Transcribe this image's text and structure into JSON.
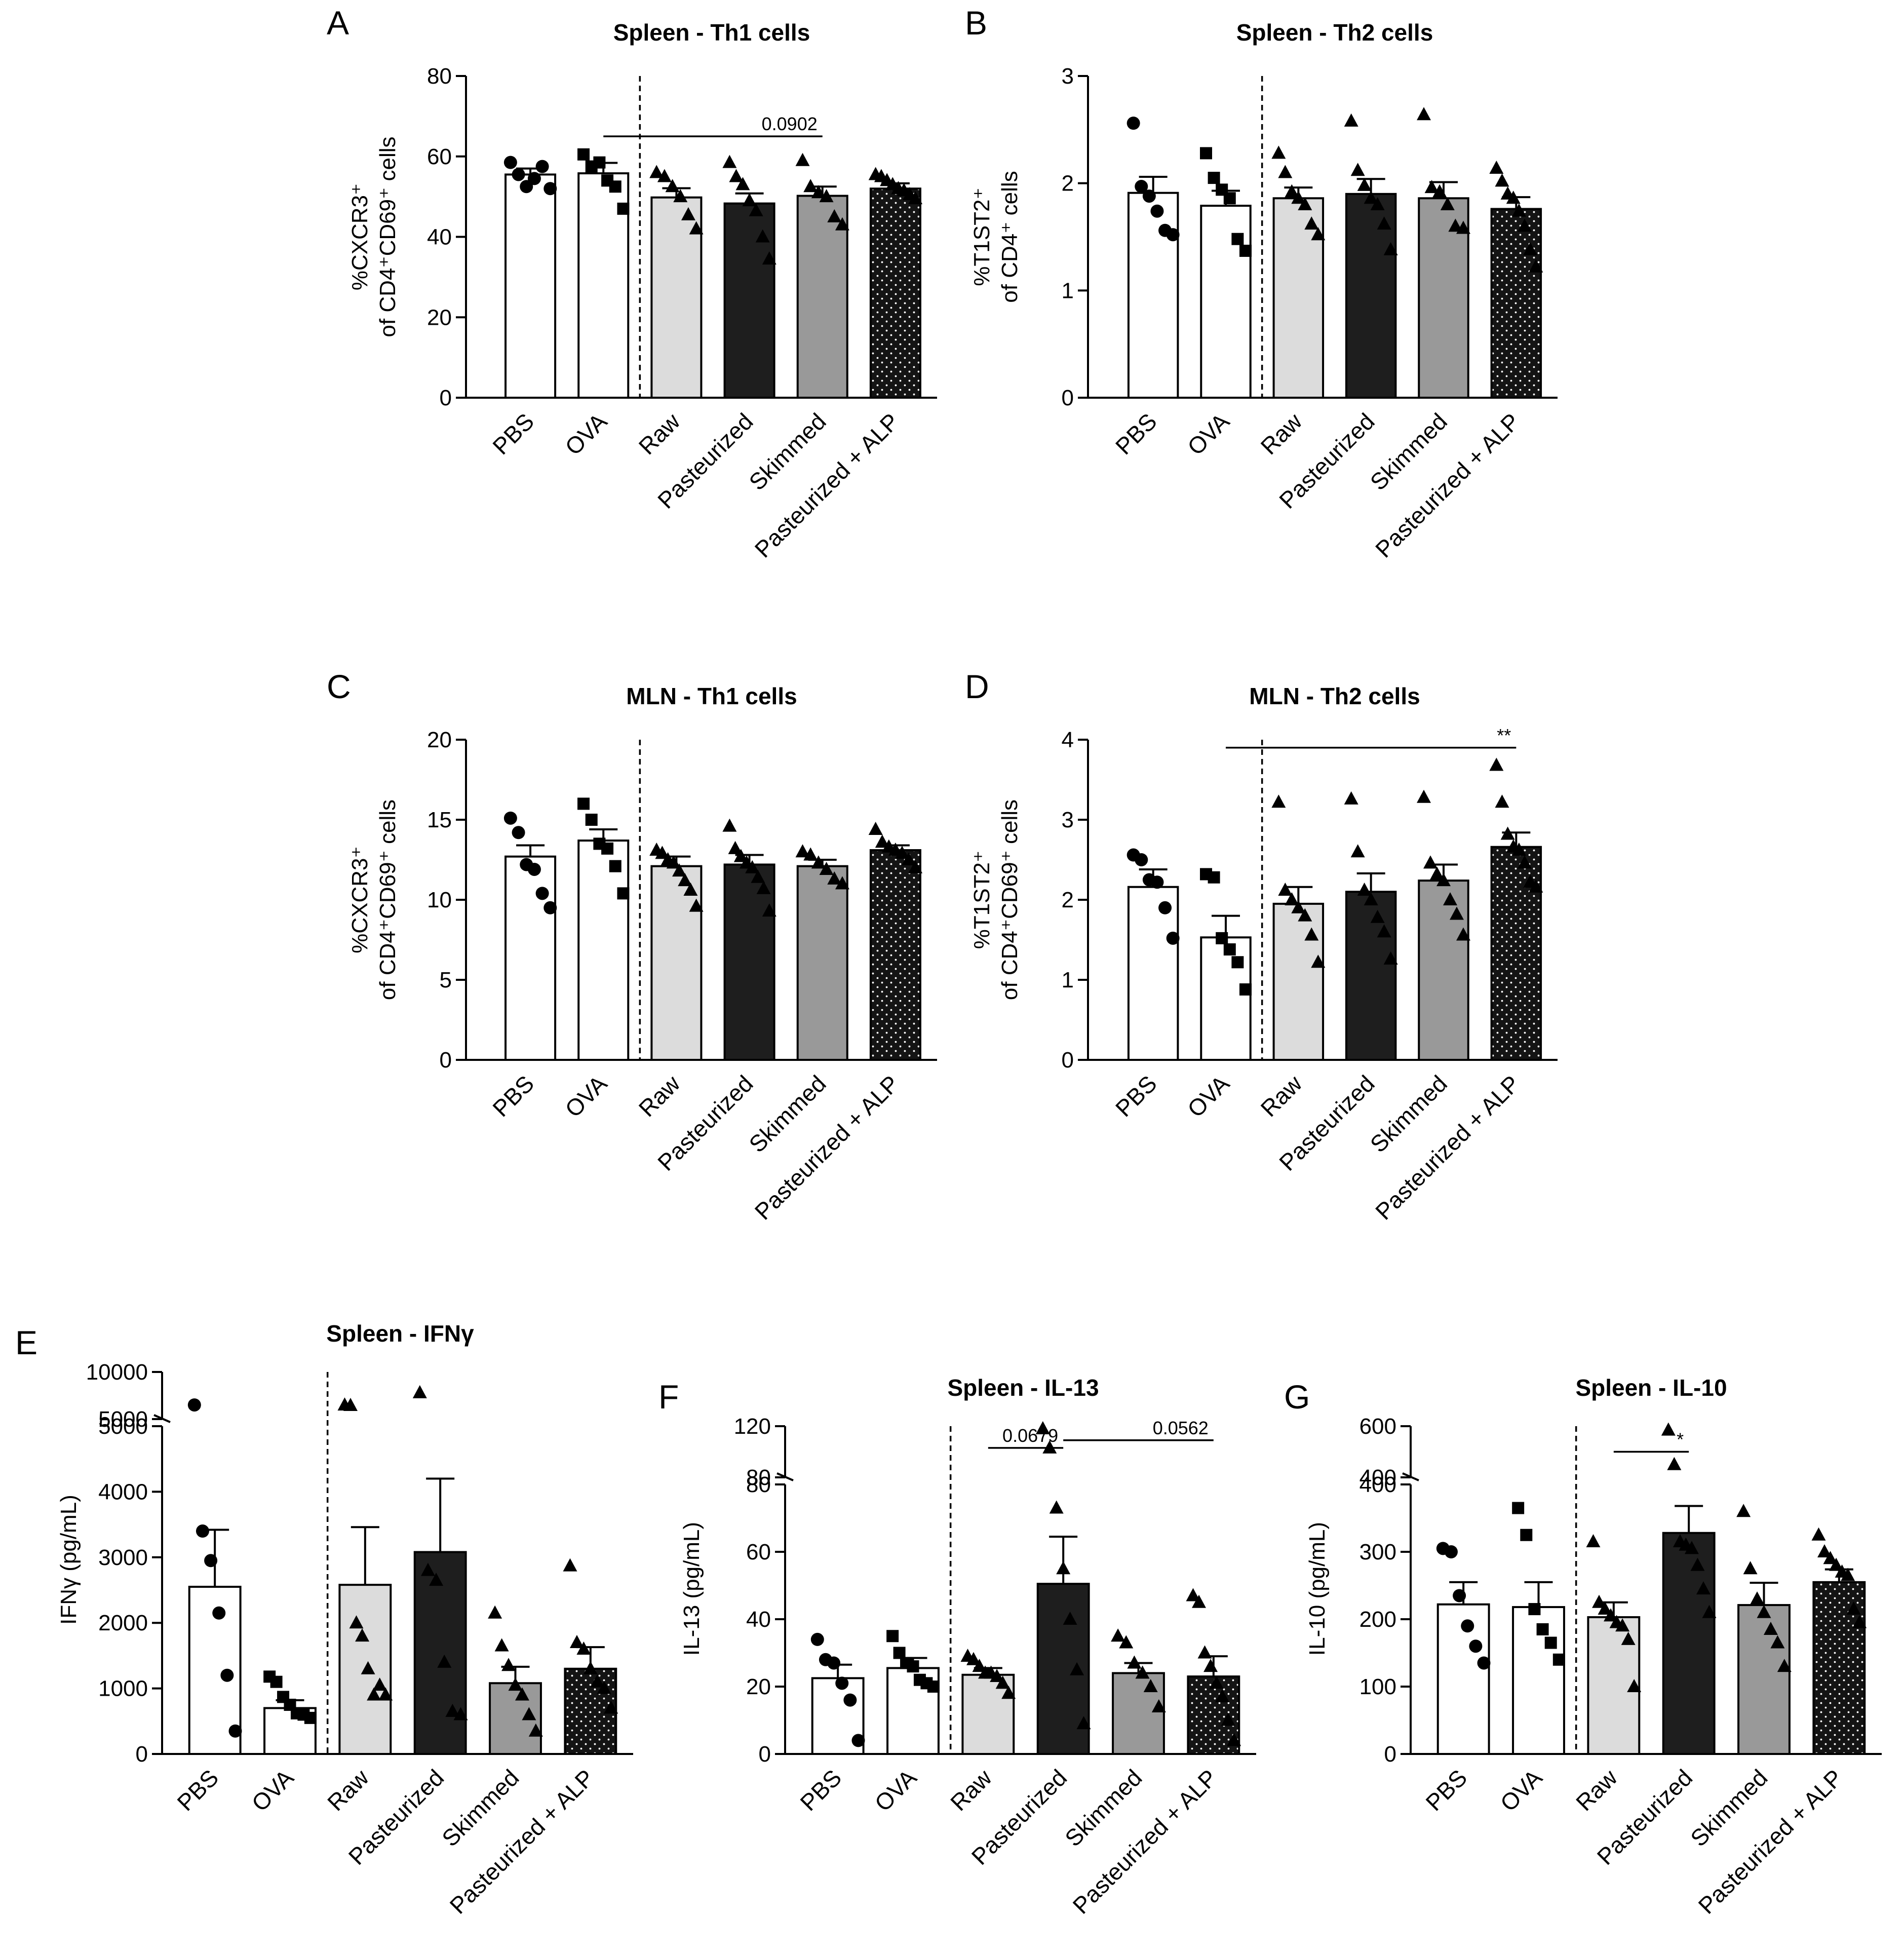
{
  "figure": {
    "categories": [
      "PBS",
      "OVA",
      "Raw",
      "Pasteurized",
      "Skimmed",
      "Pasteurized + ALP"
    ],
    "fills": {
      "PBS": "#ffffff",
      "OVA": "#ffffff",
      "Raw": "#dcdcdc",
      "Pasteurized": "#1e1e1e",
      "Skimmed": "#999999",
      "Pasteurized + ALP": "dots"
    },
    "markers": [
      "circle",
      "square",
      "triangle",
      "triangle",
      "triangle",
      "triangle"
    ]
  },
  "chart_data": [
    {
      "panel": "A",
      "type": "bar",
      "title": "Spleen - Th1 cells",
      "ylabel": [
        "%CXCR3⁺",
        "of CD4⁺CD69⁺ cells"
      ],
      "ylim": [
        0,
        80
      ],
      "yticks": [
        0,
        20,
        40,
        60,
        80
      ],
      "values": [
        55.5,
        55.8,
        49.8,
        48.3,
        50.2,
        52.0
      ],
      "sem": [
        1.5,
        2.6,
        2.3,
        2.5,
        2.3,
        1.3
      ],
      "points": [
        [
          58.5,
          55.5,
          52.5,
          54.5,
          57.5,
          52
        ],
        [
          60.5,
          57.5,
          58.5,
          54,
          52.5,
          47
        ],
        [
          56,
          55,
          52.5,
          50,
          45.5,
          42
        ],
        [
          58.5,
          55,
          53,
          49,
          46.5,
          40,
          34.5
        ],
        [
          59,
          52.5,
          51,
          50,
          45,
          43
        ],
        [
          55.5,
          55,
          54,
          53,
          52,
          51.5,
          50.5,
          49.5
        ]
      ],
      "annotations": [
        {
          "from": 1,
          "to": 4,
          "y": 65,
          "label": "0.0902"
        }
      ]
    },
    {
      "panel": "B",
      "type": "bar",
      "title": "Spleen - Th2 cells",
      "ylabel": [
        "%T1ST2⁺",
        "of CD4⁺ cells"
      ],
      "ylim": [
        0,
        3
      ],
      "yticks": [
        0,
        1,
        2,
        3
      ],
      "values": [
        1.91,
        1.79,
        1.86,
        1.9,
        1.86,
        1.76
      ],
      "sem": [
        0.15,
        0.14,
        0.1,
        0.14,
        0.15,
        0.11
      ],
      "points": [
        [
          2.56,
          1.97,
          1.88,
          1.74,
          1.56,
          1.52
        ],
        [
          2.28,
          2.05,
          1.94,
          1.86,
          1.48,
          1.37
        ],
        [
          2.28,
          2.1,
          1.92,
          1.86,
          1.8,
          1.62,
          1.52
        ],
        [
          2.58,
          2.12,
          1.98,
          1.86,
          1.8,
          1.62,
          1.38
        ],
        [
          2.64,
          1.96,
          1.92,
          1.8,
          1.6,
          1.58
        ],
        [
          2.14,
          2.02,
          1.9,
          1.86,
          1.74,
          1.6,
          1.38,
          1.22
        ]
      ],
      "annotations": []
    },
    {
      "panel": "C",
      "type": "bar",
      "title": "MLN - Th1 cells",
      "ylabel": [
        "%CXCR3⁺",
        "of CD4⁺CD69⁺ cells"
      ],
      "ylim": [
        0,
        20
      ],
      "yticks": [
        0,
        5,
        10,
        15,
        20
      ],
      "values": [
        12.7,
        13.7,
        12.1,
        12.2,
        12.1,
        13.1
      ],
      "sem": [
        0.7,
        0.7,
        0.6,
        0.6,
        0.4,
        0.3
      ],
      "points": [
        [
          15.1,
          14.2,
          12.2,
          11.9,
          10.4,
          9.5
        ],
        [
          16.0,
          15.0,
          13.5,
          13.2,
          12.1,
          10.4
        ],
        [
          13.1,
          12.9,
          12.5,
          12.3,
          11.8,
          11.2,
          10.6,
          9.6
        ],
        [
          14.6,
          13.2,
          12.7,
          12.3,
          12.0,
          11.4,
          10.7,
          9.3
        ],
        [
          13.0,
          12.8,
          12.3,
          11.9,
          11.3,
          11.0
        ],
        [
          14.4,
          13.6,
          13.3,
          13.1,
          12.9,
          12.5,
          12.0
        ]
      ],
      "annotations": []
    },
    {
      "panel": "D",
      "type": "bar",
      "title": "MLN - Th2 cells",
      "ylabel": [
        "%T1ST2⁺",
        "of CD4⁺CD69⁺ cells"
      ],
      "ylim": [
        0,
        4
      ],
      "yticks": [
        0,
        1,
        2,
        3,
        4
      ],
      "values": [
        2.16,
        1.53,
        1.95,
        2.1,
        2.24,
        2.66
      ],
      "sem": [
        0.22,
        0.27,
        0.21,
        0.23,
        0.2,
        0.18
      ],
      "points": [
        [
          2.56,
          2.5,
          2.25,
          2.22,
          1.9,
          1.52
        ],
        [
          2.32,
          2.28,
          1.52,
          1.38,
          1.22,
          0.88
        ],
        [
          3.22,
          2.12,
          2.0,
          1.9,
          1.8,
          1.56,
          1.22
        ],
        [
          3.26,
          2.6,
          2.12,
          2.0,
          1.78,
          1.6,
          1.26
        ],
        [
          3.28,
          2.46,
          2.32,
          2.24,
          2.0,
          1.82,
          1.56
        ],
        [
          3.68,
          3.22,
          2.82,
          2.66,
          2.62,
          2.46,
          2.22,
          2.16
        ]
      ],
      "annotations": [
        {
          "from": 1,
          "to": 5,
          "y": 3.9,
          "label": "**"
        }
      ]
    },
    {
      "panel": "E",
      "type": "bar",
      "title": "Spleen - IFNγ",
      "ylabel": [
        "IFNγ (pg/mL)"
      ],
      "ylim": [
        0,
        5000
      ],
      "yticks": [
        0,
        1000,
        2000,
        3000,
        4000,
        5000
      ],
      "break": {
        "ticks": [
          5000,
          10000
        ],
        "range": [
          5000,
          10000
        ]
      },
      "values": [
        2550,
        700,
        2580,
        3080,
        1080,
        1300
      ],
      "sem": [
        870,
        120,
        880,
        1120,
        250,
        330
      ],
      "points": [
        [
          6500,
          3400,
          2950,
          2150,
          1200,
          350
        ],
        [
          1180,
          1100,
          870,
          750,
          620,
          600,
          550
        ],
        [
          6500,
          6450,
          2000,
          1800,
          1300,
          900,
          1050,
          900
        ],
        [
          7800,
          2800,
          2650,
          1400,
          650,
          600
        ],
        [
          2150,
          1650,
          1350,
          1050,
          900,
          600,
          350
        ],
        [
          2870,
          1700,
          1600,
          1300,
          1100,
          1000,
          700
        ]
      ],
      "annotations": []
    },
    {
      "panel": "F",
      "type": "bar",
      "title": "Spleen - IL-13",
      "ylabel": [
        "IL-13 (pg/mL)"
      ],
      "ylim": [
        0,
        80
      ],
      "yticks": [
        0,
        20,
        40,
        60,
        80
      ],
      "break": {
        "ticks": [
          80,
          120
        ],
        "range": [
          80,
          120
        ]
      },
      "values": [
        22.5,
        25.5,
        23.5,
        50.5,
        24.0,
        23.0
      ],
      "sem": [
        4.0,
        3.0,
        2.0,
        14.0,
        3.0,
        6.0
      ],
      "points": [
        [
          34,
          28,
          27,
          21,
          16,
          4
        ],
        [
          35,
          30,
          27,
          26,
          22,
          21,
          20
        ],
        [
          29,
          28,
          26,
          24,
          24,
          23,
          21,
          18
        ],
        [
          118,
          103,
          73,
          55,
          40,
          25,
          9
        ],
        [
          35,
          33,
          27,
          24,
          20,
          14
        ],
        [
          47,
          45,
          30,
          26,
          21,
          17,
          10,
          4
        ]
      ],
      "annotations": [
        {
          "from": 2,
          "to": 3,
          "y": 103,
          "label": "0.0679"
        },
        {
          "from": 3,
          "to": 5,
          "y": 109,
          "label": "0.0562"
        }
      ]
    },
    {
      "panel": "G",
      "type": "bar",
      "title": "Spleen - IL-10",
      "ylabel": [
        "IL-10 (pg/mL)"
      ],
      "ylim": [
        0,
        400
      ],
      "yticks": [
        0,
        100,
        200,
        300,
        400
      ],
      "break": {
        "ticks": [
          400,
          600
        ],
        "range": [
          400,
          600
        ]
      },
      "values": [
        222,
        218,
        203,
        328,
        221,
        255
      ],
      "sem": [
        33,
        37,
        22,
        40,
        33,
        19
      ],
      "points": [
        [
          305,
          300,
          235,
          190,
          160,
          135
        ],
        [
          365,
          325,
          215,
          185,
          165,
          140
        ],
        [
          315,
          225,
          215,
          205,
          195,
          190,
          170,
          100
        ],
        [
          585,
          450,
          315,
          310,
          305,
          280,
          245,
          210
        ],
        [
          360,
          275,
          230,
          210,
          185,
          165,
          130
        ],
        [
          325,
          300,
          290,
          280,
          270,
          265,
          215,
          195
        ]
      ],
      "annotations": [
        {
          "from": 2,
          "to": 3,
          "y": 500,
          "label": "*"
        }
      ]
    }
  ]
}
